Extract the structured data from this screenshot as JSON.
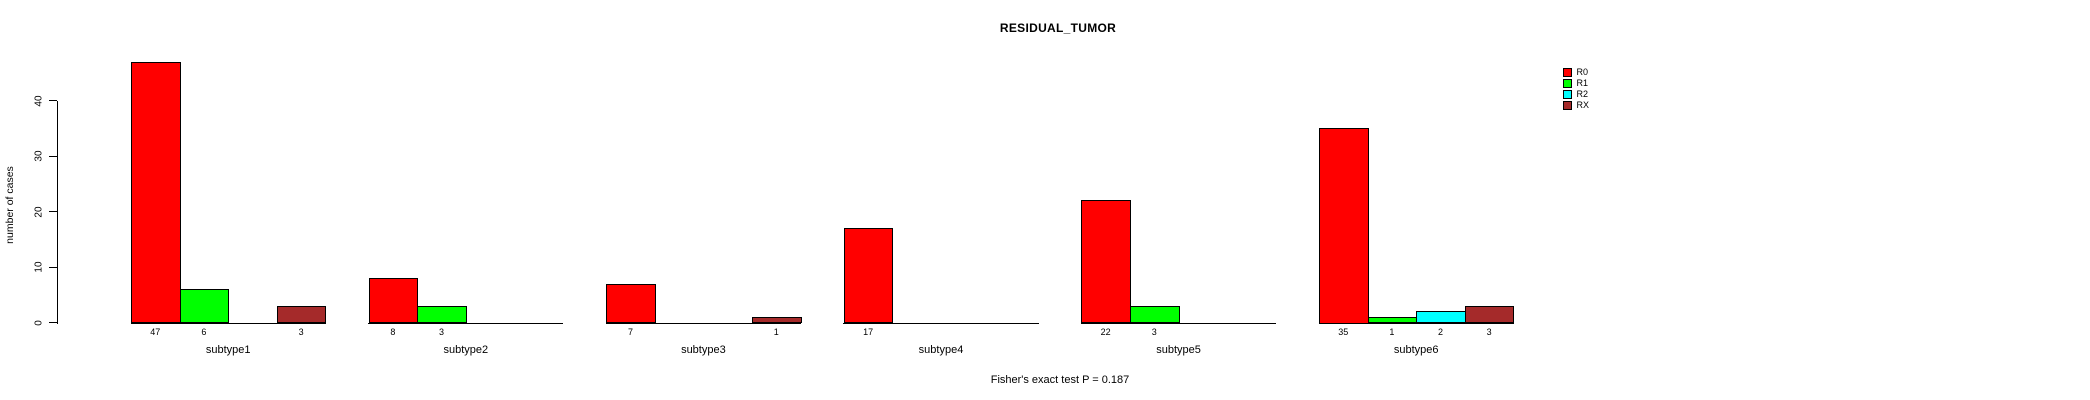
{
  "chart_data": {
    "type": "bar",
    "title": "RESIDUAL_TUMOR",
    "ylabel": "number of cases",
    "xlabel": "",
    "footnote": "Fisher's exact test P = 0.187",
    "categories": [
      "subtype1",
      "subtype2",
      "subtype3",
      "subtype4",
      "subtype5",
      "subtype6"
    ],
    "series": [
      {
        "name": "R0",
        "color": "#ff0000",
        "values": [
          47,
          8,
          7,
          17,
          22,
          35
        ]
      },
      {
        "name": "R1",
        "color": "#00ff00",
        "values": [
          6,
          3,
          0,
          0,
          3,
          1
        ]
      },
      {
        "name": "R2",
        "color": "#00ffff",
        "values": [
          0,
          0,
          0,
          0,
          0,
          2
        ]
      },
      {
        "name": "RX",
        "color": "#a52a2a",
        "values": [
          3,
          0,
          1,
          0,
          0,
          3
        ]
      }
    ],
    "y_ticks": [
      0,
      10,
      20,
      30,
      40
    ],
    "ylim": [
      0,
      47
    ],
    "grid": "off",
    "legend_position": "right",
    "bar_value_labels": "shown under bars, zero values omitted",
    "axis_color": "#000000",
    "bar_border_color": "#000000",
    "background_color": "#ffffff"
  }
}
